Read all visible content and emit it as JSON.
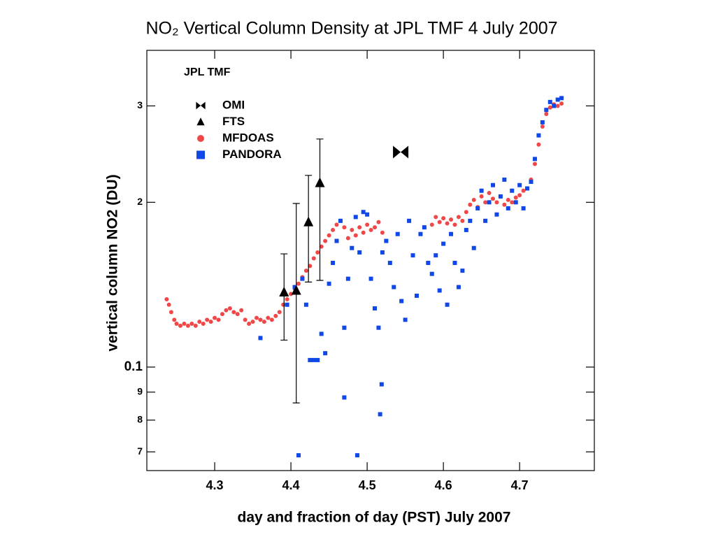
{
  "chart_data": {
    "type": "scatter",
    "title": "NO₂ Vertical Column Density at JPL TMF  4 July 2007",
    "annotation": "JPL TMF",
    "xlabel": "day and fraction of day (PST) July 2007",
    "ylabel": "vertical column NO2 (DU)",
    "xlim": [
      4.211,
      4.798
    ],
    "ylim": [
      0.647,
      3.79
    ],
    "ylog": true,
    "xticks": [
      4.3,
      4.4,
      4.5,
      4.6,
      4.7
    ],
    "yticks": [
      3,
      2,
      {
        "value": 1,
        "label": "0.1"
      },
      {
        "value": 0.9,
        "label": "9"
      },
      {
        "value": 0.8,
        "label": "8"
      },
      {
        "value": 0.7,
        "label": "7"
      }
    ],
    "legend": "upper left",
    "series": [
      {
        "name": "OMI",
        "marker": "bowtie",
        "color": "#000000",
        "x": [
          4.544
        ],
        "values": [
          2.47
        ]
      },
      {
        "name": "FTS",
        "marker": "triangle",
        "color": "#000000",
        "x": [
          4.391,
          4.407,
          4.423,
          4.438
        ],
        "values": [
          1.37,
          1.38,
          1.84,
          2.17
        ],
        "err_low": [
          1.12,
          0.86,
          1.43,
          1.44
        ],
        "err_high": [
          1.61,
          1.99,
          2.24,
          2.61
        ]
      },
      {
        "name": "MFDOAS",
        "marker": "circle",
        "color": "#f04848",
        "x": [
          4.237,
          4.24,
          4.243,
          4.247,
          4.25,
          4.255,
          4.26,
          4.265,
          4.27,
          4.275,
          4.28,
          4.285,
          4.29,
          4.295,
          4.3,
          4.305,
          4.31,
          4.315,
          4.32,
          4.325,
          4.33,
          4.335,
          4.34,
          4.345,
          4.35,
          4.355,
          4.36,
          4.365,
          4.37,
          4.375,
          4.38,
          4.385,
          4.39,
          4.395,
          4.4,
          4.405,
          4.41,
          4.415,
          4.42,
          4.425,
          4.43,
          4.435,
          4.44,
          4.445,
          4.45,
          4.455,
          4.46,
          4.465,
          4.47,
          4.475,
          4.48,
          4.485,
          4.49,
          4.495,
          4.5,
          4.505,
          4.51,
          4.515,
          4.52,
          4.585,
          4.59,
          4.595,
          4.6,
          4.605,
          4.61,
          4.615,
          4.62,
          4.625,
          4.63,
          4.635,
          4.64,
          4.645,
          4.65,
          4.655,
          4.66,
          4.665,
          4.67,
          4.675,
          4.68,
          4.685,
          4.69,
          4.695,
          4.7,
          4.705,
          4.71,
          4.715,
          4.72,
          4.725,
          4.73,
          4.735,
          4.74,
          4.745,
          4.75,
          4.755
        ],
        "values": [
          1.33,
          1.3,
          1.26,
          1.22,
          1.2,
          1.19,
          1.2,
          1.19,
          1.2,
          1.19,
          1.21,
          1.2,
          1.22,
          1.21,
          1.23,
          1.22,
          1.25,
          1.27,
          1.28,
          1.26,
          1.25,
          1.27,
          1.22,
          1.2,
          1.21,
          1.23,
          1.22,
          1.21,
          1.23,
          1.22,
          1.24,
          1.26,
          1.3,
          1.33,
          1.36,
          1.39,
          1.42,
          1.46,
          1.5,
          1.53,
          1.58,
          1.62,
          1.66,
          1.7,
          1.74,
          1.78,
          1.82,
          1.85,
          1.8,
          1.72,
          1.78,
          1.74,
          1.8,
          1.76,
          1.82,
          1.78,
          1.8,
          1.84,
          1.76,
          1.82,
          1.88,
          1.84,
          1.87,
          1.83,
          1.86,
          1.82,
          1.88,
          1.85,
          1.92,
          1.98,
          2.02,
          1.96,
          2.05,
          2.0,
          2.08,
          2.03,
          2.0,
          2.05,
          1.98,
          2.02,
          2.0,
          2.04,
          2.06,
          2.1,
          2.12,
          2.2,
          2.35,
          2.55,
          2.75,
          2.9,
          2.98,
          3.02,
          3.0,
          3.03
        ]
      },
      {
        "name": "PANDORA",
        "marker": "square",
        "color": "#1048e8",
        "x": [
          4.36,
          4.395,
          4.405,
          4.415,
          4.42,
          4.425,
          4.43,
          4.435,
          4.44,
          4.445,
          4.45,
          4.455,
          4.46,
          4.465,
          4.47,
          4.475,
          4.48,
          4.485,
          4.49,
          4.495,
          4.5,
          4.505,
          4.51,
          4.515,
          4.52,
          4.525,
          4.53,
          4.535,
          4.54,
          4.545,
          4.55,
          4.555,
          4.56,
          4.565,
          4.57,
          4.575,
          4.58,
          4.585,
          4.59,
          4.595,
          4.6,
          4.605,
          4.61,
          4.615,
          4.62,
          4.625,
          4.63,
          4.635,
          4.64,
          4.645,
          4.65,
          4.655,
          4.66,
          4.665,
          4.67,
          4.675,
          4.68,
          4.685,
          4.69,
          4.695,
          4.7,
          4.705,
          4.71,
          4.715,
          4.72,
          4.725,
          4.73,
          4.735,
          4.74,
          4.745,
          4.75,
          4.755,
          4.47,
          4.517,
          4.519,
          4.41,
          4.487
        ],
        "values": [
          1.13,
          1.3,
          1.4,
          1.45,
          1.3,
          1.03,
          1.03,
          1.03,
          1.15,
          1.06,
          1.42,
          1.55,
          1.7,
          1.85,
          1.18,
          1.45,
          1.65,
          1.88,
          1.62,
          1.92,
          1.9,
          1.45,
          1.28,
          1.18,
          1.62,
          1.7,
          1.55,
          1.4,
          1.75,
          1.32,
          1.22,
          1.85,
          1.6,
          1.35,
          1.75,
          1.8,
          1.55,
          1.48,
          1.6,
          1.38,
          1.68,
          1.3,
          1.75,
          1.55,
          1.4,
          1.5,
          1.78,
          1.85,
          1.65,
          1.95,
          2.1,
          1.85,
          2.0,
          2.15,
          1.9,
          2.05,
          2.2,
          1.95,
          2.1,
          2.0,
          2.15,
          1.95,
          2.12,
          2.18,
          2.4,
          2.65,
          2.8,
          2.95,
          3.05,
          3.0,
          3.08,
          3.1,
          0.88,
          0.82,
          0.93,
          0.69,
          0.69
        ]
      }
    ]
  }
}
